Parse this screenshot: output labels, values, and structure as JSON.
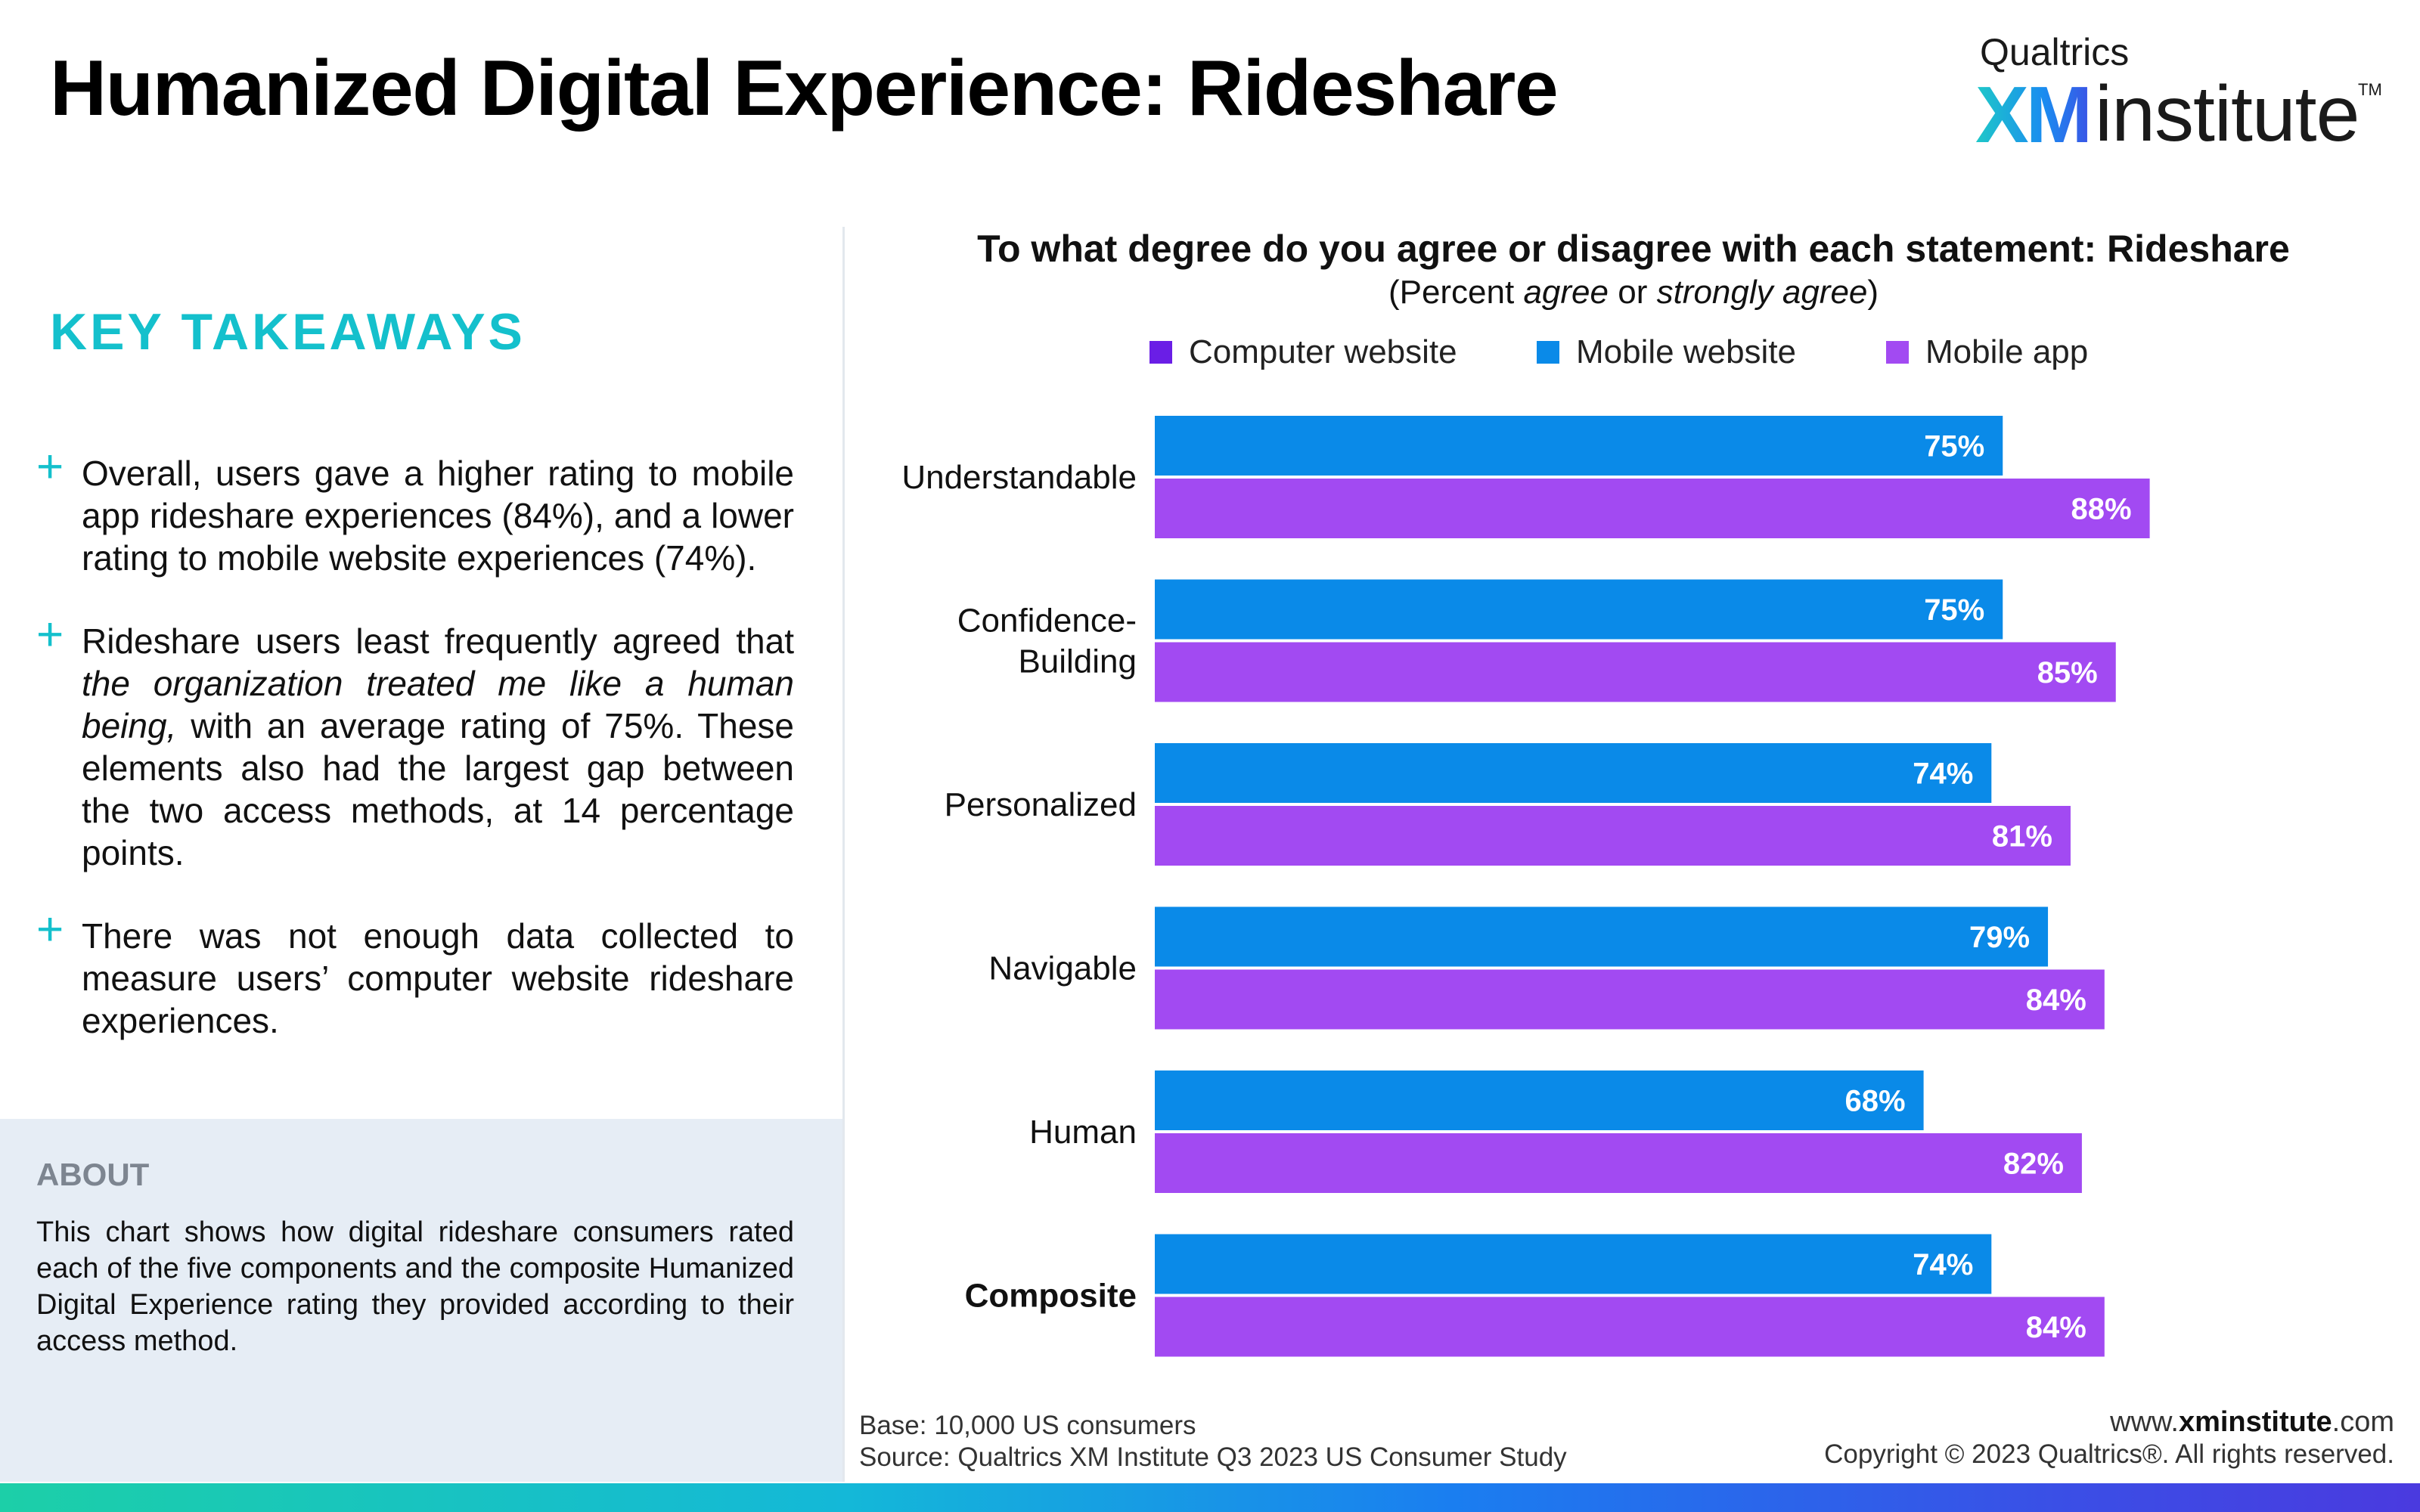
{
  "header": {
    "title": "Humanized Digital Experience: Rideshare",
    "logo_top": "Qualtrics",
    "logo_xm": "XM",
    "logo_institute": "institute",
    "logo_tm": "TM"
  },
  "takeaways": {
    "heading": "KEY TAKEAWAYS",
    "plus": "+",
    "item1": "Overall, users gave a higher rating to mobile app rideshare experiences (84%), and a lower rating to mobile website experiences (74%).",
    "item2_pre": "Rideshare users least frequently agreed that ",
    "item2_ital": "the organization treated me like a human being,",
    "item2_post": " with an average rating of 75%. These elements also had the largest gap between the two access methods, at 14 percentage points.",
    "item3": "There was not enough data collected to measure users’ computer website rideshare experiences."
  },
  "about": {
    "heading": "ABOUT",
    "text": "This chart shows how digital rideshare consumers rated each of the five components and the composite Humanized Digital Experience rating they provided according to their access method."
  },
  "footer": {
    "base": "Base: 10,000 US consumers",
    "source": "Source: Qualtrics XM Institute Q3 2023 US Consumer Study",
    "site_pre": "www.",
    "site_bold": "xminstitute",
    "site_post": ".com",
    "copyright": "Copyright © 2023 Qualtrics®. All rights reserved."
  },
  "chart_data": {
    "type": "bar",
    "orientation": "horizontal",
    "title": "To what degree do you agree or disagree with each statement: Rideshare",
    "subtitle_parts": [
      "(Percent ",
      "agree",
      " or ",
      "strongly agree",
      ")"
    ],
    "categories": [
      [
        "Understandable"
      ],
      [
        "Confidence-",
        "Building"
      ],
      [
        "Personalized"
      ],
      [
        "Navigable"
      ],
      [
        "Human"
      ],
      [
        "Composite"
      ]
    ],
    "bold_categories": [
      "Composite"
    ],
    "legend": [
      {
        "name": "Computer website",
        "color": "#6a1ee6"
      },
      {
        "name": "Mobile website",
        "color": "#0a8ae8"
      },
      {
        "name": "Mobile app",
        "color": "#a24af2"
      }
    ],
    "series": [
      {
        "name": "Mobile website",
        "color": "#0a8ae8",
        "values": [
          75,
          75,
          74,
          79,
          68,
          74
        ]
      },
      {
        "name": "Mobile app",
        "color": "#a24af2",
        "values": [
          88,
          85,
          81,
          84,
          82,
          84
        ]
      }
    ],
    "value_suffix": "%",
    "xlim": [
      0,
      100
    ],
    "grid": false,
    "legend_position": "top"
  }
}
